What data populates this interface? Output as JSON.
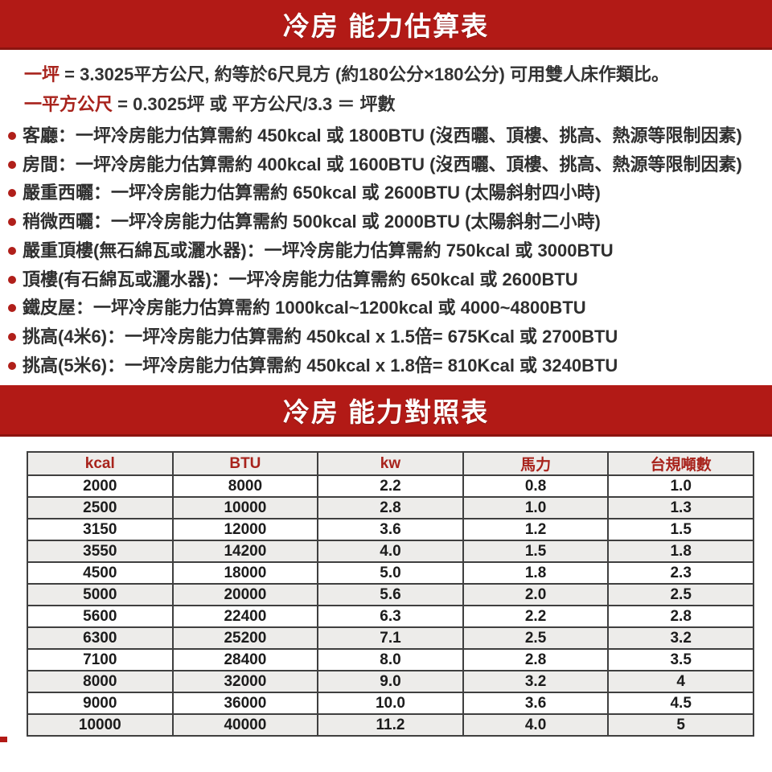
{
  "banners": {
    "estimation_title": "冷房 能力估算表",
    "comparison_title": "冷房 能力對照表"
  },
  "intro": [
    {
      "term": "一坪",
      "rest": " = 3.3025平方公尺, 約等於6尺見方 (約180公分×180公分) 可用雙人床作類比。"
    },
    {
      "term": "一平方公尺",
      "rest": " = 0.3025坪 或 平方公尺/3.3 ＝ 坪數"
    }
  ],
  "bullets": [
    "客廳：一坪冷房能力估算需約 450kcal 或 1800BTU (沒西曬、頂樓、挑高、熱源等限制因素)",
    "房間：一坪冷房能力估算需約 400kcal 或 1600BTU (沒西曬、頂樓、挑高、熱源等限制因素)",
    "嚴重西曬：一坪冷房能力估算需約 650kcal 或 2600BTU (太陽斜射四小時)",
    "稍微西曬：一坪冷房能力估算需約 500kcal 或 2000BTU (太陽斜射二小時)",
    "嚴重頂樓(無石綿瓦或灑水器)：一坪冷房能力估算需約 750kcal 或 3000BTU",
    "頂樓(有石綿瓦或灑水器)：一坪冷房能力估算需約 650kcal 或 2600BTU",
    "鐵皮屋：一坪冷房能力估算需約 1000kcal~1200kcal 或 4000~4800BTU",
    "挑高(4米6)：一坪冷房能力估算需約 450kcal x 1.5倍= 675Kcal 或 2700BTU",
    "挑高(5米6)：一坪冷房能力估算需約 450kcal x 1.8倍= 810Kcal 或 3240BTU"
  ],
  "comparison_table": {
    "headers": [
      "kcal",
      "BTU",
      "kw",
      "馬力",
      "台規噸數"
    ],
    "rows": [
      [
        "2000",
        "8000",
        "2.2",
        "0.8",
        "1.0"
      ],
      [
        "2500",
        "10000",
        "2.8",
        "1.0",
        "1.3"
      ],
      [
        "3150",
        "12000",
        "3.6",
        "1.2",
        "1.5"
      ],
      [
        "3550",
        "14200",
        "4.0",
        "1.5",
        "1.8"
      ],
      [
        "4500",
        "18000",
        "5.0",
        "1.8",
        "2.3"
      ],
      [
        "5000",
        "20000",
        "5.6",
        "2.0",
        "2.5"
      ],
      [
        "5600",
        "22400",
        "6.3",
        "2.2",
        "2.8"
      ],
      [
        "6300",
        "25200",
        "7.1",
        "2.5",
        "3.2"
      ],
      [
        "7100",
        "28400",
        "8.0",
        "2.8",
        "3.5"
      ],
      [
        "8000",
        "32000",
        "9.0",
        "3.2",
        "4"
      ],
      [
        "9000",
        "36000",
        "10.0",
        "3.6",
        "4.5"
      ],
      [
        "10000",
        "40000",
        "11.2",
        "4.0",
        "5"
      ]
    ]
  },
  "colors": {
    "banner_red": "#b21a16",
    "banner_red_dark_edge": "#8c1410",
    "accent_red_text": "#a8231c",
    "bullet_dot_red": "#b01f1a",
    "alt_row_bg": "#edecea",
    "table_border": "#3f3f3f",
    "body_text": "#2f2f2f"
  }
}
